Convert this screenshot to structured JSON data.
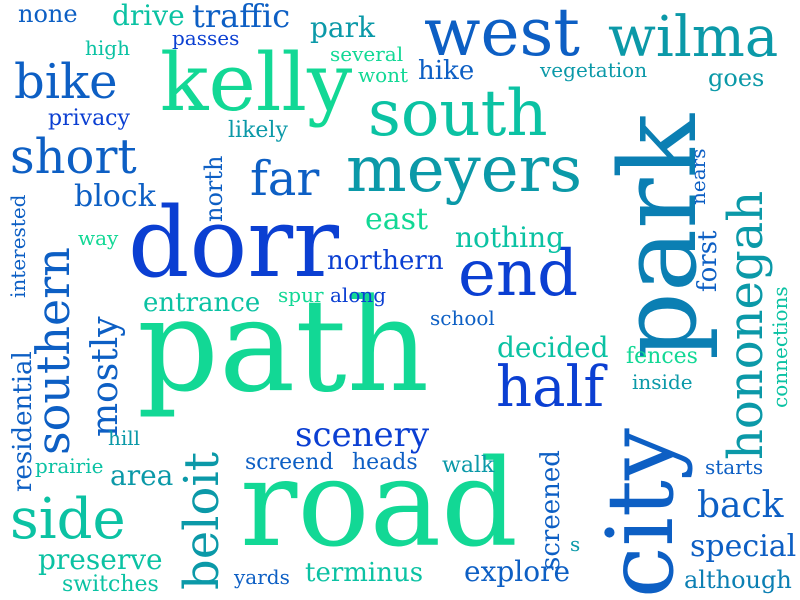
{
  "palette": {
    "royal": "#0b3fd2",
    "blue": "#0d5fc4",
    "steel": "#0b7fb3",
    "teal": "#0b99a8",
    "mint": "#12d895",
    "sea": "#0bc2a3"
  },
  "words": {
    "path": "path",
    "road": "road",
    "city": "city",
    "park": "park",
    "dorr": "dorr",
    "kelly": "kelly",
    "south": "south",
    "meyers": "meyers",
    "west": "west",
    "wilma": "wilma",
    "end": "end",
    "hononeg": "hononegah",
    "half": "half",
    "side": "side",
    "beloit": "beloit",
    "southern": "southern",
    "short": "short",
    "bike": "bike",
    "far": "far",
    "scenery": "scenery",
    "mostly": "mostly",
    "back": "back",
    "special": "special",
    "explore": "explore",
    "terminus": "terminus",
    "decided": "decided",
    "nothing": "nothing",
    "northern": "northern",
    "entrance": "entrance",
    "east": "east",
    "block": "block",
    "residential": "residential",
    "area": "area",
    "preserve": "preserve",
    "screened": "screened",
    "screend": "screend",
    "heads": "heads",
    "walk": "walk",
    "forst": "forst",
    "connections": "connections",
    "inside": "inside",
    "fences": "fences",
    "starts": "starts",
    "although": "although",
    "yards": "yards",
    "switches": "switches",
    "prairie": "prairie",
    "hill": "hill",
    "school": "school",
    "along": "along",
    "spur": "spur",
    "north": "north",
    "way": "way",
    "interested": "interested",
    "privacy": "privacy",
    "likely": "likely",
    "high": "high",
    "none": "none",
    "drive": "drive",
    "traffic": "traffic",
    "passes": "passes",
    "park_small": "park",
    "several": "several",
    "wont": "wont",
    "hike": "hike",
    "vegetation": "vegetation",
    "goes": "goes",
    "nears": "nears",
    "s": "s"
  }
}
